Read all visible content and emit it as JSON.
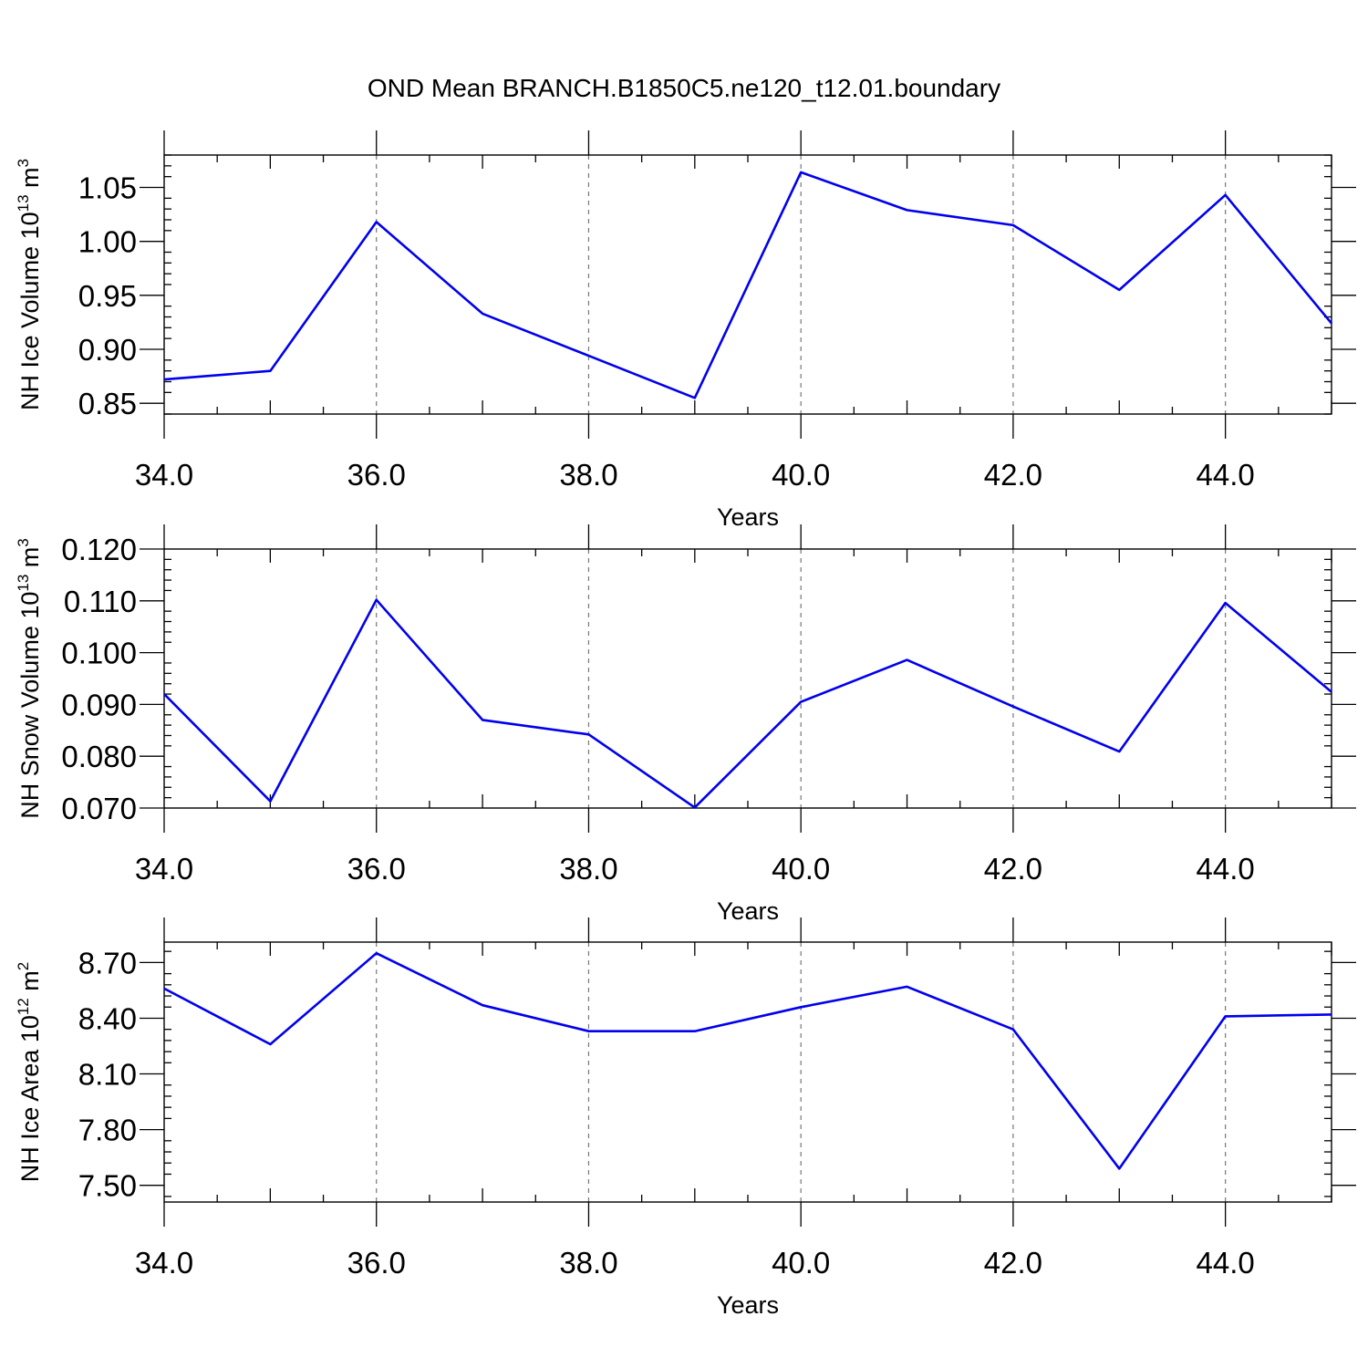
{
  "title": "OND Mean BRANCH.B1850C5.ne120_t12.01.boundary",
  "colors": {
    "line": "#0000ee",
    "frame": "#000000",
    "grid": "#777777"
  },
  "chart_data": [
    {
      "type": "line",
      "title": "OND Mean BRANCH.B1850C5.ne120_t12.01.boundary",
      "ylabel": {
        "text": "NH Ice Volume 10",
        "exponent": "13",
        "unit": " m",
        "unit_exponent": "3"
      },
      "xlabel": "Years",
      "xlim": [
        34,
        45
      ],
      "ylim": [
        0.84,
        1.08
      ],
      "x_ticks": [
        34,
        36,
        38,
        40,
        42,
        44
      ],
      "x_tick_labels": [
        "34.0",
        "36.0",
        "38.0",
        "40.0",
        "42.0",
        "44.0"
      ],
      "y_ticks": [
        0.85,
        0.9,
        0.95,
        1.0,
        1.05
      ],
      "y_tick_labels": [
        "0.85",
        "0.90",
        "0.95",
        "1.00",
        "1.05"
      ],
      "y_minor_step": 0.01,
      "grid": "vertical dashed at major x ticks",
      "series": [
        {
          "x": [
            34,
            35,
            36,
            37,
            38,
            39,
            40,
            41,
            42,
            43,
            44,
            45
          ],
          "values": [
            0.872,
            0.88,
            1.018,
            0.933,
            0.894,
            0.855,
            1.064,
            1.029,
            1.015,
            0.955,
            1.043,
            0.924
          ]
        }
      ]
    },
    {
      "type": "line",
      "ylabel": {
        "text": "NH Snow Volume 10",
        "exponent": "13",
        "unit": " m",
        "unit_exponent": "3"
      },
      "xlabel": "Years",
      "xlim": [
        34,
        45
      ],
      "ylim": [
        0.07,
        0.12
      ],
      "x_ticks": [
        34,
        36,
        38,
        40,
        42,
        44
      ],
      "x_tick_labels": [
        "34.0",
        "36.0",
        "38.0",
        "40.0",
        "42.0",
        "44.0"
      ],
      "y_ticks": [
        0.07,
        0.08,
        0.09,
        0.1,
        0.11,
        0.12
      ],
      "y_tick_labels": [
        "0.070",
        "0.080",
        "0.090",
        "0.100",
        "0.110",
        "0.120"
      ],
      "y_minor_step": 0.002,
      "grid": "vertical dashed at major x ticks",
      "series": [
        {
          "x": [
            34,
            35,
            36,
            37,
            38,
            39,
            40,
            41,
            42,
            43,
            44,
            45
          ],
          "values": [
            0.092,
            0.0713,
            0.1102,
            0.087,
            0.0842,
            0.0701,
            0.0905,
            0.0986,
            0.0896,
            0.0809,
            0.1096,
            0.0924
          ]
        }
      ]
    },
    {
      "type": "line",
      "ylabel": {
        "text": "NH Ice Area 10",
        "exponent": "12",
        "unit": " m",
        "unit_exponent": "2"
      },
      "xlabel": "Years",
      "xlim": [
        34,
        45
      ],
      "ylim": [
        7.41,
        8.81
      ],
      "x_ticks": [
        34,
        36,
        38,
        40,
        42,
        44
      ],
      "x_tick_labels": [
        "34.0",
        "36.0",
        "38.0",
        "40.0",
        "42.0",
        "44.0"
      ],
      "y_ticks": [
        7.5,
        7.8,
        8.1,
        8.4,
        8.7
      ],
      "y_tick_labels": [
        "7.50",
        "7.80",
        "8.10",
        "8.40",
        "8.70"
      ],
      "y_minor_step": 0.06,
      "grid": "vertical dashed at major x ticks",
      "series": [
        {
          "x": [
            34,
            35,
            36,
            37,
            38,
            39,
            40,
            41,
            42,
            43,
            44,
            45
          ],
          "values": [
            8.56,
            8.26,
            8.75,
            8.47,
            8.33,
            8.33,
            8.46,
            8.57,
            8.34,
            7.59,
            8.41,
            8.42
          ]
        }
      ]
    }
  ]
}
